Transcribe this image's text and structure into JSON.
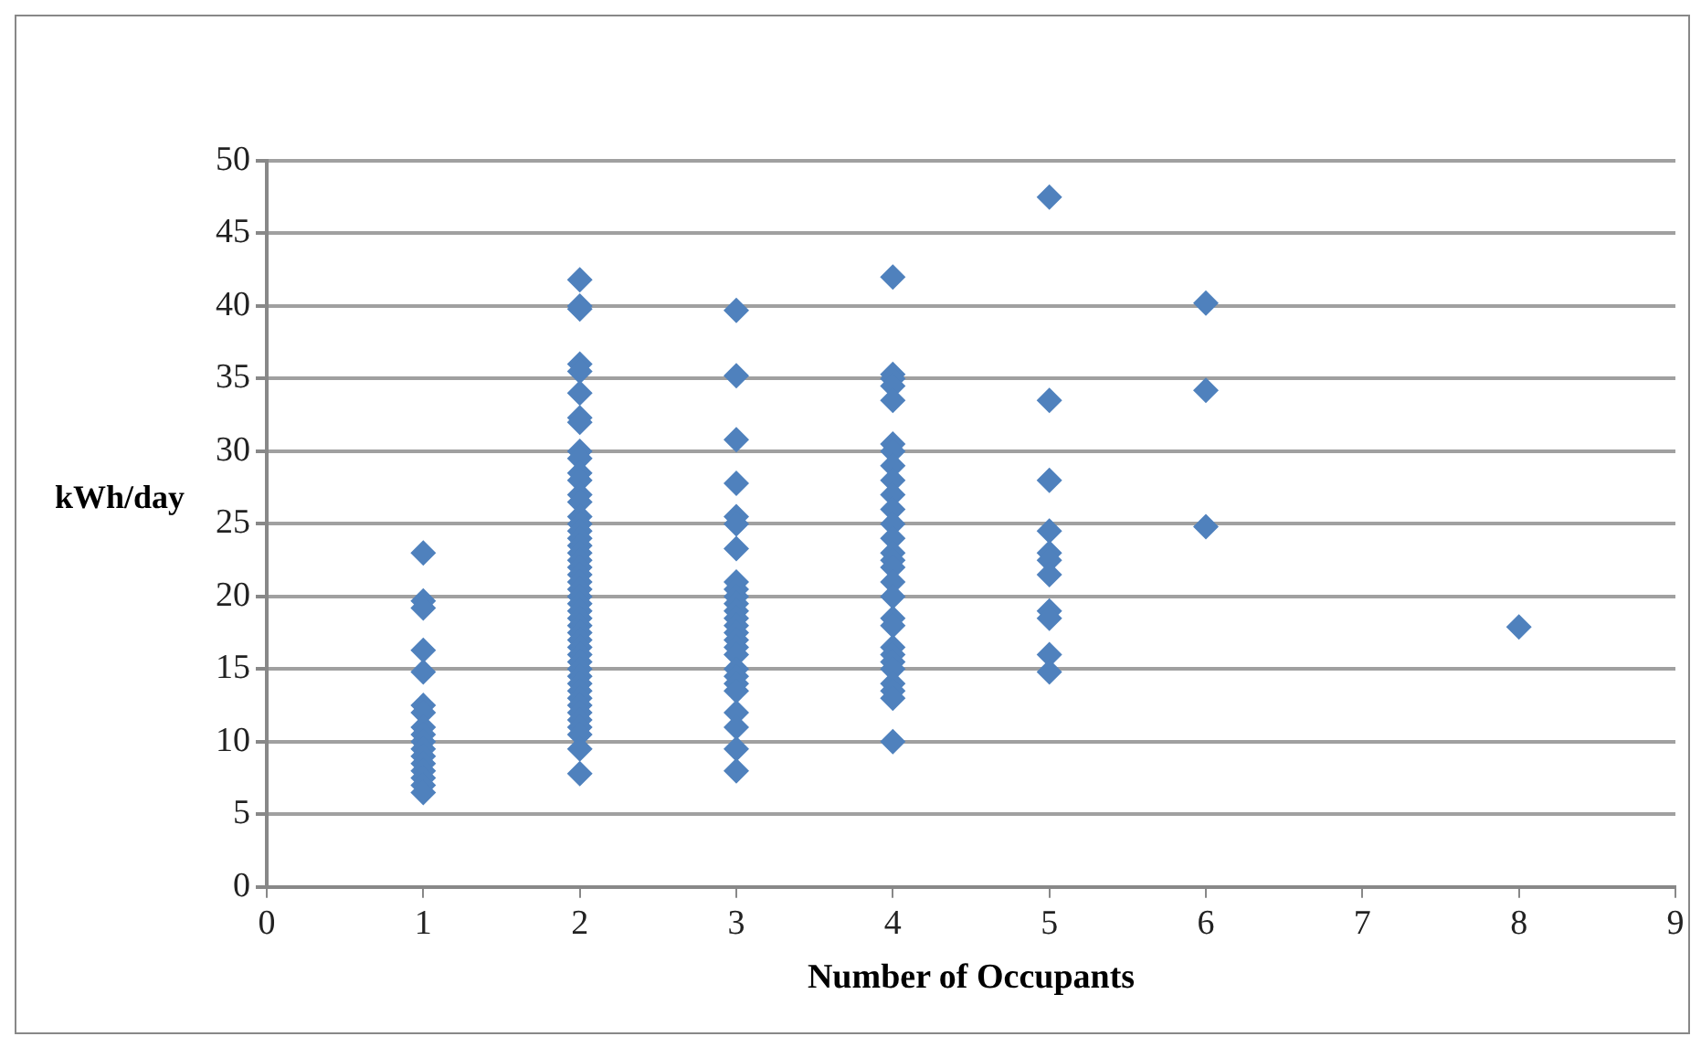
{
  "chart_data": {
    "type": "scatter",
    "xlabel": "Number of Occupants",
    "ylabel": "kWh/day",
    "series": [
      {
        "color": "#4f81bd",
        "x": [
          1,
          1,
          1,
          1,
          1,
          1,
          1,
          1,
          1,
          1,
          1,
          1,
          1,
          1,
          1,
          1,
          1,
          2,
          2,
          2,
          2,
          2,
          2,
          2,
          2,
          2,
          2,
          2,
          2,
          2,
          2,
          2,
          2,
          2,
          2,
          2,
          2,
          2,
          2,
          2,
          2,
          2,
          2,
          2,
          2,
          2,
          2,
          2,
          2,
          2,
          2,
          2,
          2,
          2,
          2,
          2,
          2,
          2,
          2,
          2,
          2,
          2,
          2,
          2,
          3,
          3,
          3,
          3,
          3,
          3,
          3,
          3,
          3,
          3,
          3,
          3,
          3,
          3,
          3,
          3,
          3,
          3,
          3,
          3,
          3,
          3,
          3,
          3,
          3,
          3,
          4,
          4,
          4,
          4,
          4,
          4,
          4,
          4,
          4,
          4,
          4,
          4,
          4,
          4,
          4,
          4,
          4,
          4,
          4,
          4,
          4,
          4,
          4,
          4,
          4,
          4,
          4,
          4,
          5,
          5,
          5,
          5,
          5,
          5,
          5,
          5,
          5,
          5,
          5,
          6,
          6,
          6,
          8
        ],
        "values": [
          23,
          19.7,
          19.2,
          16.3,
          14.8,
          12.5,
          12,
          11,
          10.5,
          10,
          9.5,
          9,
          8.5,
          8,
          7.5,
          7,
          6.5,
          41.8,
          40,
          39.8,
          36,
          35.5,
          34,
          32.3,
          32,
          30,
          29.5,
          28.5,
          28,
          27,
          26.5,
          25.5,
          25,
          24.5,
          24,
          23.5,
          23,
          22.5,
          22,
          21.5,
          21,
          20.5,
          20,
          19.5,
          19,
          18.5,
          18,
          17.5,
          17,
          16.5,
          16,
          15.5,
          15,
          14.5,
          14,
          13.5,
          13,
          12.5,
          12,
          11.5,
          11,
          10.5,
          9.5,
          7.8,
          39.7,
          35.2,
          30.8,
          27.8,
          25.5,
          25,
          23.3,
          21,
          20.5,
          20,
          19.5,
          19,
          18.5,
          18,
          17.5,
          17,
          16.5,
          16,
          15,
          14.5,
          14,
          13.5,
          12,
          11,
          9.5,
          8,
          42,
          35.3,
          35,
          34.5,
          33.5,
          30.5,
          30,
          29,
          28,
          27,
          26,
          25,
          24,
          23,
          22.5,
          22,
          21,
          20,
          18.5,
          18,
          16.5,
          16,
          15.5,
          15,
          14,
          13.5,
          13,
          10,
          47.5,
          33.5,
          28,
          24.5,
          23,
          22.5,
          21.5,
          19,
          18.5,
          16,
          14.8,
          40.2,
          34.2,
          24.8,
          17.9
        ]
      }
    ],
    "xlim": [
      0,
      9
    ],
    "xticks": [
      0,
      1,
      2,
      3,
      4,
      5,
      6,
      7,
      8,
      9
    ],
    "ylim": [
      0,
      50
    ],
    "yticks": [
      0,
      5,
      10,
      15,
      20,
      25,
      30,
      35,
      40,
      45,
      50
    ],
    "grid": "y",
    "marker": "diamond"
  }
}
